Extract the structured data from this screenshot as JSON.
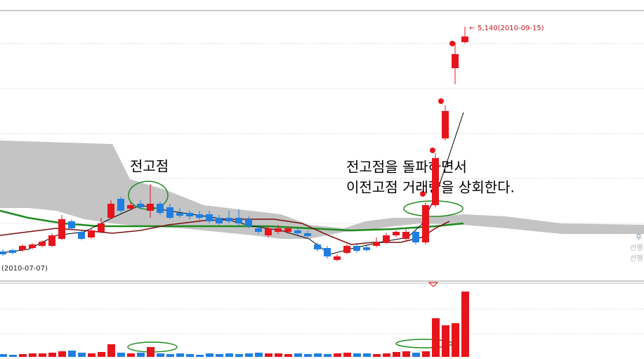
{
  "chart_data": {
    "type": "candlestick",
    "ylim": [
      3330,
      5255
    ],
    "vlim": [
      0,
      100
    ],
    "up_color": "#e8141c",
    "down_color": "#1e7fe0",
    "open": [
      3540,
      3550,
      3550,
      3565,
      3580,
      3580,
      3630,
      3755,
      3680,
      3640,
      3680,
      3780,
      3915,
      3845,
      3880,
      3830,
      3880,
      3855,
      3815,
      3815,
      3805,
      3805,
      3780,
      3780,
      3780,
      3770,
      3705,
      3655,
      3680,
      3680,
      3690,
      3670,
      3590,
      3565,
      3480,
      3530,
      3580,
      3570,
      3580,
      3605,
      3655,
      3630,
      3680,
      3605,
      3870,
      4345,
      4845,
      5030
    ],
    "high": [
      3555,
      3560,
      3590,
      3600,
      3620,
      3670,
      3800,
      3770,
      3695,
      3705,
      3780,
      3905,
      3930,
      3890,
      3905,
      4020,
      3895,
      3880,
      3850,
      3830,
      3830,
      3830,
      3800,
      3830,
      3840,
      3790,
      3730,
      3720,
      3730,
      3720,
      3705,
      3690,
      3605,
      3580,
      3520,
      3590,
      3590,
      3580,
      3640,
      3670,
      3690,
      3700,
      3700,
      3890,
      4240,
      4580,
      5030,
      5140
    ],
    "low": [
      3510,
      3520,
      3540,
      3555,
      3570,
      3570,
      3620,
      3690,
      3620,
      3630,
      3670,
      3770,
      3815,
      3830,
      3840,
      3780,
      3800,
      3770,
      3780,
      3770,
      3765,
      3740,
      3730,
      3740,
      3720,
      3705,
      3665,
      3640,
      3665,
      3665,
      3655,
      3630,
      3540,
      3490,
      3470,
      3520,
      3530,
      3540,
      3570,
      3595,
      3645,
      3620,
      3590,
      3590,
      3855,
      4330,
      4730,
      5020
    ],
    "close": [
      3520,
      3530,
      3580,
      3590,
      3610,
      3655,
      3770,
      3705,
      3630,
      3690,
      3740,
      3880,
      3830,
      3870,
      3855,
      3880,
      3815,
      3780,
      3795,
      3790,
      3780,
      3755,
      3740,
      3755,
      3740,
      3720,
      3680,
      3705,
      3705,
      3705,
      3670,
      3650,
      3555,
      3505,
      3505,
      3580,
      3545,
      3550,
      3605,
      3655,
      3680,
      3680,
      3605,
      3870,
      4205,
      4540,
      4945,
      5070
    ],
    "volume": [
      4,
      3,
      4,
      5,
      5,
      6,
      8,
      9,
      6,
      5,
      7,
      18,
      6,
      5,
      6,
      14,
      5,
      4,
      5,
      4,
      3,
      5,
      4,
      5,
      4,
      5,
      6,
      5,
      5,
      4,
      5,
      4,
      5,
      4,
      5,
      6,
      5,
      5,
      4,
      5,
      7,
      8,
      6,
      8,
      55,
      45,
      48,
      93
    ],
    "high_label": "5,140(2010-09-15)",
    "low_label": "(2010-07-07)",
    "annotations": [
      "전고점",
      "전고점을 돌파하면서",
      "이전고점 거래량을 상회한다."
    ],
    "side_labels": [
      "후",
      "선행",
      "선행"
    ]
  }
}
